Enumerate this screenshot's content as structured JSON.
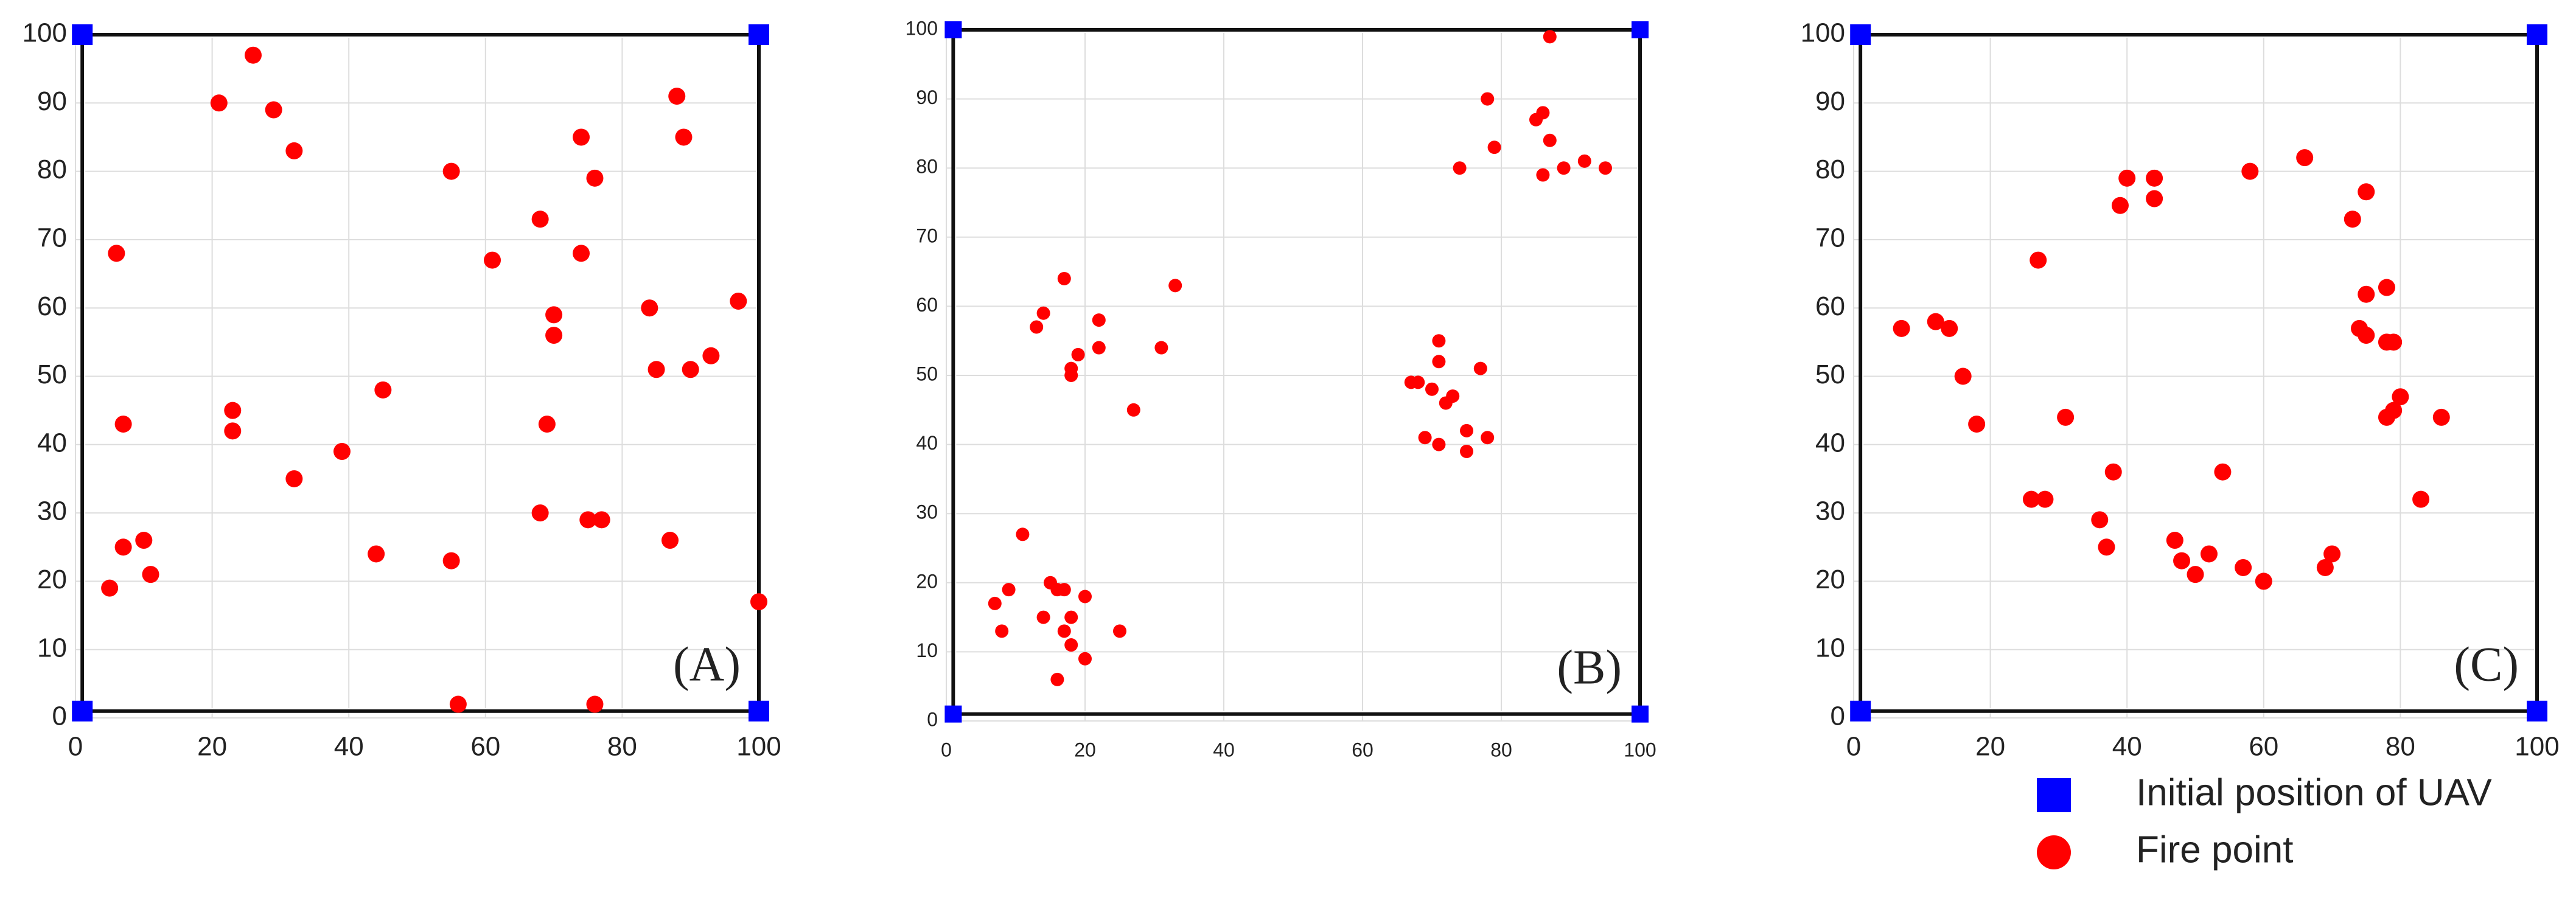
{
  "chart_data": [
    {
      "type": "scatter",
      "annotation": "(A)",
      "xlim": [
        0,
        100
      ],
      "ylim": [
        0,
        100
      ],
      "xticks": [
        0,
        20,
        40,
        60,
        80,
        100
      ],
      "yticks": [
        0,
        10,
        20,
        30,
        40,
        50,
        60,
        70,
        80,
        90,
        100
      ],
      "grid": true,
      "series": [
        {
          "color": "#0000ff",
          "marker": "square",
          "x": [
            1,
            1,
            100,
            100
          ],
          "y": [
            1,
            100,
            100,
            1
          ]
        },
        {
          "color": "#ff0000",
          "marker": "circle",
          "x": [
            5,
            7,
            7,
            6,
            10,
            11,
            21,
            26,
            29,
            32,
            23,
            23,
            32,
            39,
            45,
            44,
            55,
            55,
            56,
            61,
            68,
            69,
            70,
            70,
            68,
            74,
            76,
            74,
            75,
            77,
            76,
            84,
            85,
            88,
            89,
            87,
            90,
            93,
            97,
            100
          ],
          "y": [
            19,
            25,
            43,
            68,
            26,
            21,
            90,
            97,
            89,
            83,
            45,
            42,
            35,
            39,
            48,
            24,
            80,
            23,
            2,
            67,
            73,
            43,
            59,
            56,
            30,
            85,
            79,
            68,
            29,
            29,
            2,
            60,
            51,
            91,
            85,
            26,
            51,
            53,
            61,
            17
          ]
        }
      ]
    },
    {
      "type": "scatter",
      "annotation": "(B)",
      "xlim": [
        0,
        100
      ],
      "ylim": [
        0,
        100
      ],
      "xticks": [
        0,
        20,
        40,
        60,
        80,
        100
      ],
      "yticks": [
        0,
        10,
        20,
        30,
        40,
        50,
        60,
        70,
        80,
        90,
        100
      ],
      "grid": true,
      "series": [
        {
          "color": "#0000ff",
          "marker": "square",
          "x": [
            1,
            1,
            100,
            100
          ],
          "y": [
            1,
            100,
            100,
            1
          ]
        },
        {
          "color": "#ff0000",
          "marker": "circle",
          "x": [
            87,
            78,
            79,
            85,
            86,
            87,
            74,
            86,
            89,
            92,
            95,
            17,
            14,
            13,
            22,
            19,
            18,
            18,
            22,
            31,
            33,
            27,
            71,
            71,
            67,
            68,
            70,
            72,
            73,
            77,
            69,
            71,
            75,
            78,
            75,
            11,
            7,
            9,
            8,
            15,
            17,
            16,
            20,
            14,
            18,
            17,
            18,
            25,
            20,
            16
          ],
          "y": [
            99,
            90,
            83,
            87,
            88,
            84,
            80,
            79,
            80,
            81,
            80,
            64,
            59,
            57,
            58,
            53,
            51,
            50,
            54,
            54,
            63,
            45,
            55,
            52,
            49,
            49,
            48,
            46,
            47,
            51,
            41,
            40,
            42,
            41,
            39,
            27,
            17,
            19,
            13,
            20,
            19,
            19,
            18,
            15,
            15,
            13,
            11,
            13,
            9,
            6
          ]
        }
      ]
    },
    {
      "type": "scatter",
      "annotation": "(C)",
      "xlim": [
        0,
        100
      ],
      "ylim": [
        0,
        100
      ],
      "xticks": [
        0,
        20,
        40,
        60,
        80,
        100
      ],
      "yticks": [
        0,
        10,
        20,
        30,
        40,
        50,
        60,
        70,
        80,
        90,
        100
      ],
      "grid": true,
      "series": [
        {
          "name": "Initial position of UAV",
          "color": "#0000ff",
          "marker": "square",
          "x": [
            1,
            1,
            100,
            100
          ],
          "y": [
            1,
            100,
            100,
            1
          ]
        },
        {
          "name": "Fire point",
          "color": "#ff0000",
          "marker": "circle",
          "x": [
            7,
            12,
            14,
            16,
            18,
            27,
            26,
            28,
            31,
            38,
            36,
            37,
            39,
            40,
            44,
            44,
            47,
            48,
            50,
            52,
            54,
            57,
            58,
            60,
            66,
            69,
            70,
            73,
            75,
            75,
            74,
            75,
            78,
            78,
            79,
            80,
            79,
            78,
            83,
            86
          ],
          "y": [
            57,
            58,
            57,
            50,
            43,
            67,
            32,
            32,
            44,
            36,
            29,
            25,
            75,
            79,
            79,
            76,
            26,
            23,
            21,
            24,
            36,
            22,
            80,
            20,
            82,
            22,
            24,
            73,
            77,
            62,
            57,
            56,
            63,
            55,
            55,
            47,
            45,
            44,
            32,
            44
          ]
        }
      ]
    }
  ]
}
